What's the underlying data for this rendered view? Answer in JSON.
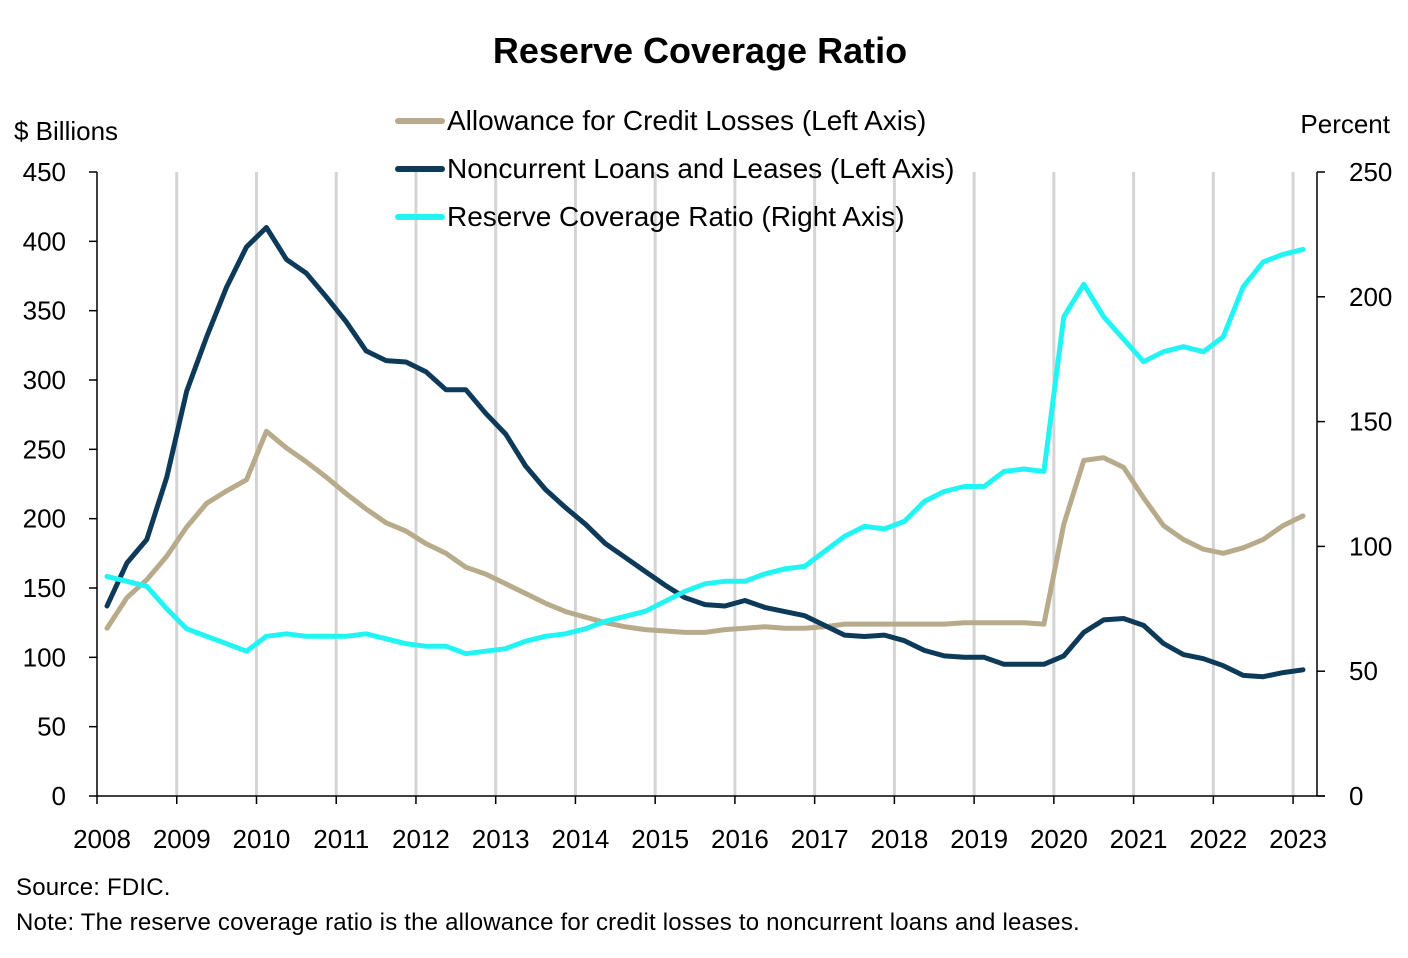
{
  "chart_data": {
    "type": "line",
    "title": "Reserve Coverage Ratio",
    "left_axis_label": "$ Billions",
    "right_axis_label": "Percent",
    "left_ylim": [
      0,
      450
    ],
    "right_ylim": [
      0,
      250
    ],
    "left_ticks": [
      "0",
      "50",
      "100",
      "150",
      "200",
      "250",
      "300",
      "350",
      "400",
      "450"
    ],
    "right_ticks": [
      "0",
      "50",
      "100",
      "150",
      "200",
      "250"
    ],
    "x_tick_labels": [
      "2008",
      "2009",
      "2010",
      "2011",
      "2012",
      "2013",
      "2014",
      "2015",
      "2016",
      "2017",
      "2018",
      "2019",
      "2020",
      "2021",
      "2022",
      "2023"
    ],
    "xlim": [
      2008.0,
      2023.3
    ],
    "grid": "vertical lines at each year",
    "legend_placement": "top-center",
    "x": [
      2008.125,
      2008.375,
      2008.625,
      2008.875,
      2009.125,
      2009.375,
      2009.625,
      2009.875,
      2010.125,
      2010.375,
      2010.625,
      2010.875,
      2011.125,
      2011.375,
      2011.625,
      2011.875,
      2012.125,
      2012.375,
      2012.625,
      2012.875,
      2013.125,
      2013.375,
      2013.625,
      2013.875,
      2014.125,
      2014.375,
      2014.625,
      2014.875,
      2015.125,
      2015.375,
      2015.625,
      2015.875,
      2016.125,
      2016.375,
      2016.625,
      2016.875,
      2017.125,
      2017.375,
      2017.625,
      2017.875,
      2018.125,
      2018.375,
      2018.625,
      2018.875,
      2019.125,
      2019.375,
      2019.625,
      2019.875,
      2020.125,
      2020.375,
      2020.625,
      2020.875,
      2021.125,
      2021.375,
      2021.625,
      2021.875,
      2022.125,
      2022.375,
      2022.625,
      2022.875,
      2023.125
    ],
    "series": [
      {
        "name": "Allowance for Credit Losses (Left Axis)",
        "axis": "left",
        "color": "#b8ab8b",
        "values": [
          121,
          143,
          156,
          173,
          194,
          211,
          220,
          228,
          263,
          251,
          241,
          230,
          218,
          207,
          197,
          191,
          182,
          175,
          165,
          160,
          153,
          146,
          139,
          133,
          129,
          125,
          122,
          120,
          119,
          118,
          118,
          120,
          121,
          122,
          121,
          121,
          122,
          124,
          124,
          124,
          124,
          124,
          124,
          125,
          125,
          125,
          125,
          124,
          196,
          242,
          244,
          237,
          215,
          195,
          185,
          178,
          175,
          179,
          185,
          195,
          202
        ]
      },
      {
        "name": "Noncurrent Loans and Leases (Left Axis)",
        "axis": "left",
        "color": "#0e3a5a",
        "values": [
          137,
          168,
          185,
          230,
          292,
          331,
          367,
          396,
          410,
          387,
          377,
          360,
          342,
          321,
          314,
          313,
          306,
          293,
          293,
          276,
          261,
          238,
          221,
          208,
          196,
          182,
          172,
          162,
          152,
          143,
          138,
          137,
          141,
          136,
          133,
          130,
          123,
          116,
          115,
          116,
          112,
          105,
          101,
          100,
          100,
          95,
          95,
          95,
          101,
          118,
          127,
          128,
          123,
          110,
          102,
          99,
          94,
          87,
          86,
          89,
          91
        ]
      },
      {
        "name": "Reserve Coverage Ratio (Right Axis)",
        "axis": "right",
        "color": "#22f4f4",
        "values": [
          88,
          86,
          84,
          75,
          67,
          64,
          61,
          58,
          64,
          65,
          64,
          64,
          64,
          65,
          63,
          61,
          60,
          60,
          57,
          58,
          59,
          62,
          64,
          65,
          67,
          70,
          72,
          74,
          78,
          82,
          85,
          86,
          86,
          89,
          91,
          92,
          98,
          104,
          108,
          107,
          110,
          118,
          122,
          124,
          124,
          130,
          131,
          130,
          192,
          205,
          192,
          183,
          174,
          178,
          180,
          178,
          184,
          204,
          214,
          217,
          219
        ]
      }
    ]
  },
  "footer": {
    "source": "Source: FDIC.",
    "note": "Note: The reserve coverage ratio is the allowance for credit losses to noncurrent loans and leases."
  }
}
